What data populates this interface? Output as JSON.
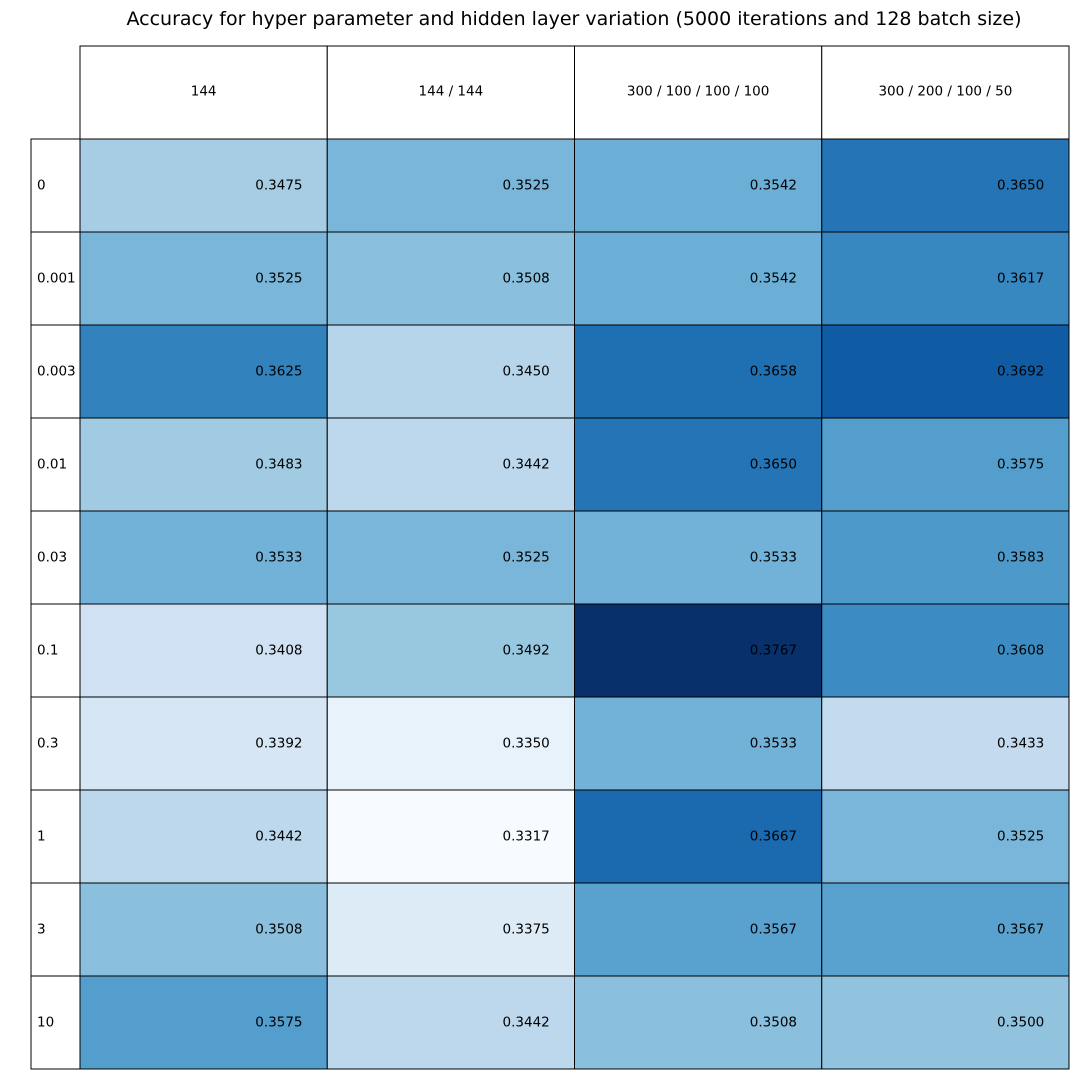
{
  "chart_data": {
    "type": "heatmap",
    "title": "Accuracy for hyper parameter and hidden layer variation (5000 iterations and 128 batch size)",
    "columns": [
      "144",
      "144 / 144",
      "300 / 100 / 100 / 100",
      "300 / 200 / 100 / 50"
    ],
    "rows": [
      "0",
      "0.001",
      "0.003",
      "0.01",
      "0.03",
      "0.1",
      "0.3",
      "1",
      "3",
      "10"
    ],
    "values": [
      [
        0.3475,
        0.3525,
        0.3542,
        0.365
      ],
      [
        0.3525,
        0.3508,
        0.3542,
        0.3617
      ],
      [
        0.3625,
        0.345,
        0.3658,
        0.3692
      ],
      [
        0.3483,
        0.3442,
        0.365,
        0.3575
      ],
      [
        0.3533,
        0.3525,
        0.3533,
        0.3583
      ],
      [
        0.3408,
        0.3492,
        0.3767,
        0.3608
      ],
      [
        0.3392,
        0.335,
        0.3533,
        0.3433
      ],
      [
        0.3442,
        0.3317,
        0.3667,
        0.3525
      ],
      [
        0.3508,
        0.3375,
        0.3567,
        0.3567
      ],
      [
        0.3575,
        0.3442,
        0.3508,
        0.35
      ]
    ],
    "cell_labels": [
      [
        "0.3475",
        "0.3525",
        "0.3542",
        "0.3650"
      ],
      [
        "0.3525",
        "0.3508",
        "0.3542",
        "0.3617"
      ],
      [
        "0.3625",
        "0.3450",
        "0.3658",
        "0.3692"
      ],
      [
        "0.3483",
        "0.3442",
        "0.3650",
        "0.3575"
      ],
      [
        "0.3533",
        "0.3525",
        "0.3533",
        "0.3583"
      ],
      [
        "0.3408",
        "0.3492",
        "0.3767",
        "0.3608"
      ],
      [
        "0.3392",
        "0.3350",
        "0.3533",
        "0.3433"
      ],
      [
        "0.3442",
        "0.3317",
        "0.3667",
        "0.3525"
      ],
      [
        "0.3508",
        "0.3375",
        "0.3567",
        "0.3567"
      ],
      [
        "0.3575",
        "0.3442",
        "0.3508",
        "0.3500"
      ]
    ],
    "colormap": [
      "#f7fbff",
      "#deebf7",
      "#c6dbef",
      "#9ecae1",
      "#6baed6",
      "#4292c6",
      "#2171b5",
      "#08519c",
      "#08306b"
    ],
    "value_range": [
      0.3317,
      0.3767
    ],
    "grid_color": "#000000",
    "text_color": "#000000"
  }
}
